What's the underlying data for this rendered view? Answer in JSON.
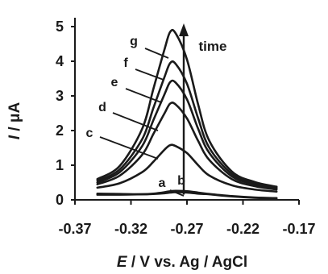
{
  "chart_data": {
    "type": "line",
    "title": "",
    "xlabel_italic": "E",
    "xlabel_rest": " / V vs. Ag / AgCl",
    "ylabel_italic": "I",
    "ylabel_rest": " / μA",
    "xlim": [
      -0.37,
      -0.17
    ],
    "ylim": [
      0,
      5.2
    ],
    "x_ticks": [
      -0.37,
      -0.32,
      -0.27,
      -0.22,
      -0.17
    ],
    "x_tick_labels": [
      "-0.37",
      "-0.32",
      "-0.27",
      "-0.22",
      "-0.17"
    ],
    "y_ticks": [
      0,
      1,
      2,
      3,
      4,
      5
    ],
    "y_tick_labels": [
      "0",
      "1",
      "2",
      "3",
      "4",
      "5"
    ],
    "grid": false,
    "annotation": "time",
    "annotation_arrow": {
      "x": -0.27,
      "y_from": 0.15,
      "y_to": 5.0
    },
    "series": [
      {
        "name": "a",
        "x": [
          -0.35,
          -0.33,
          -0.31,
          -0.3,
          -0.29,
          -0.285,
          -0.28,
          -0.27,
          -0.26,
          -0.25,
          -0.23,
          -0.21,
          -0.19
        ],
        "values": [
          0.18,
          0.17,
          0.16,
          0.17,
          0.19,
          0.21,
          0.22,
          0.21,
          0.18,
          0.16,
          0.1,
          0.06,
          0.04
        ]
      },
      {
        "name": "b",
        "x": [
          -0.35,
          -0.33,
          -0.31,
          -0.3,
          -0.29,
          -0.285,
          -0.28,
          -0.27,
          -0.26,
          -0.25,
          -0.23,
          -0.21,
          -0.19
        ],
        "values": [
          0.15,
          0.15,
          0.16,
          0.18,
          0.22,
          0.25,
          0.26,
          0.25,
          0.21,
          0.17,
          0.11,
          0.07,
          0.05
        ]
      },
      {
        "name": "c",
        "x": [
          -0.35,
          -0.33,
          -0.31,
          -0.3,
          -0.29,
          -0.285,
          -0.28,
          -0.27,
          -0.26,
          -0.25,
          -0.23,
          -0.21,
          -0.19
        ],
        "values": [
          0.35,
          0.48,
          0.8,
          1.1,
          1.45,
          1.58,
          1.55,
          1.35,
          1.0,
          0.7,
          0.42,
          0.3,
          0.24
        ]
      },
      {
        "name": "d",
        "x": [
          -0.35,
          -0.33,
          -0.31,
          -0.3,
          -0.29,
          -0.285,
          -0.28,
          -0.27,
          -0.26,
          -0.25,
          -0.23,
          -0.21,
          -0.19
        ],
        "values": [
          0.45,
          0.7,
          1.3,
          1.9,
          2.5,
          2.78,
          2.75,
          2.35,
          1.7,
          1.15,
          0.6,
          0.4,
          0.3
        ]
      },
      {
        "name": "e",
        "x": [
          -0.35,
          -0.33,
          -0.31,
          -0.3,
          -0.29,
          -0.285,
          -0.28,
          -0.27,
          -0.26,
          -0.25,
          -0.23,
          -0.21,
          -0.19
        ],
        "values": [
          0.5,
          0.8,
          1.55,
          2.3,
          3.05,
          3.4,
          3.38,
          2.9,
          2.05,
          1.35,
          0.68,
          0.45,
          0.33
        ]
      },
      {
        "name": "f",
        "x": [
          -0.35,
          -0.33,
          -0.31,
          -0.3,
          -0.29,
          -0.285,
          -0.28,
          -0.27,
          -0.26,
          -0.25,
          -0.23,
          -0.21,
          -0.19
        ],
        "values": [
          0.55,
          0.88,
          1.75,
          2.65,
          3.55,
          3.95,
          3.92,
          3.35,
          2.35,
          1.5,
          0.75,
          0.48,
          0.35
        ]
      },
      {
        "name": "g",
        "x": [
          -0.35,
          -0.33,
          -0.31,
          -0.3,
          -0.29,
          -0.285,
          -0.28,
          -0.27,
          -0.26,
          -0.25,
          -0.23,
          -0.21,
          -0.19
        ],
        "values": [
          0.6,
          0.98,
          2.05,
          3.2,
          4.35,
          4.85,
          4.8,
          4.05,
          2.75,
          1.7,
          0.82,
          0.52,
          0.38
        ]
      }
    ]
  },
  "colors": {
    "axis": "#1a1a1a",
    "curves": "#1a1a1a"
  }
}
